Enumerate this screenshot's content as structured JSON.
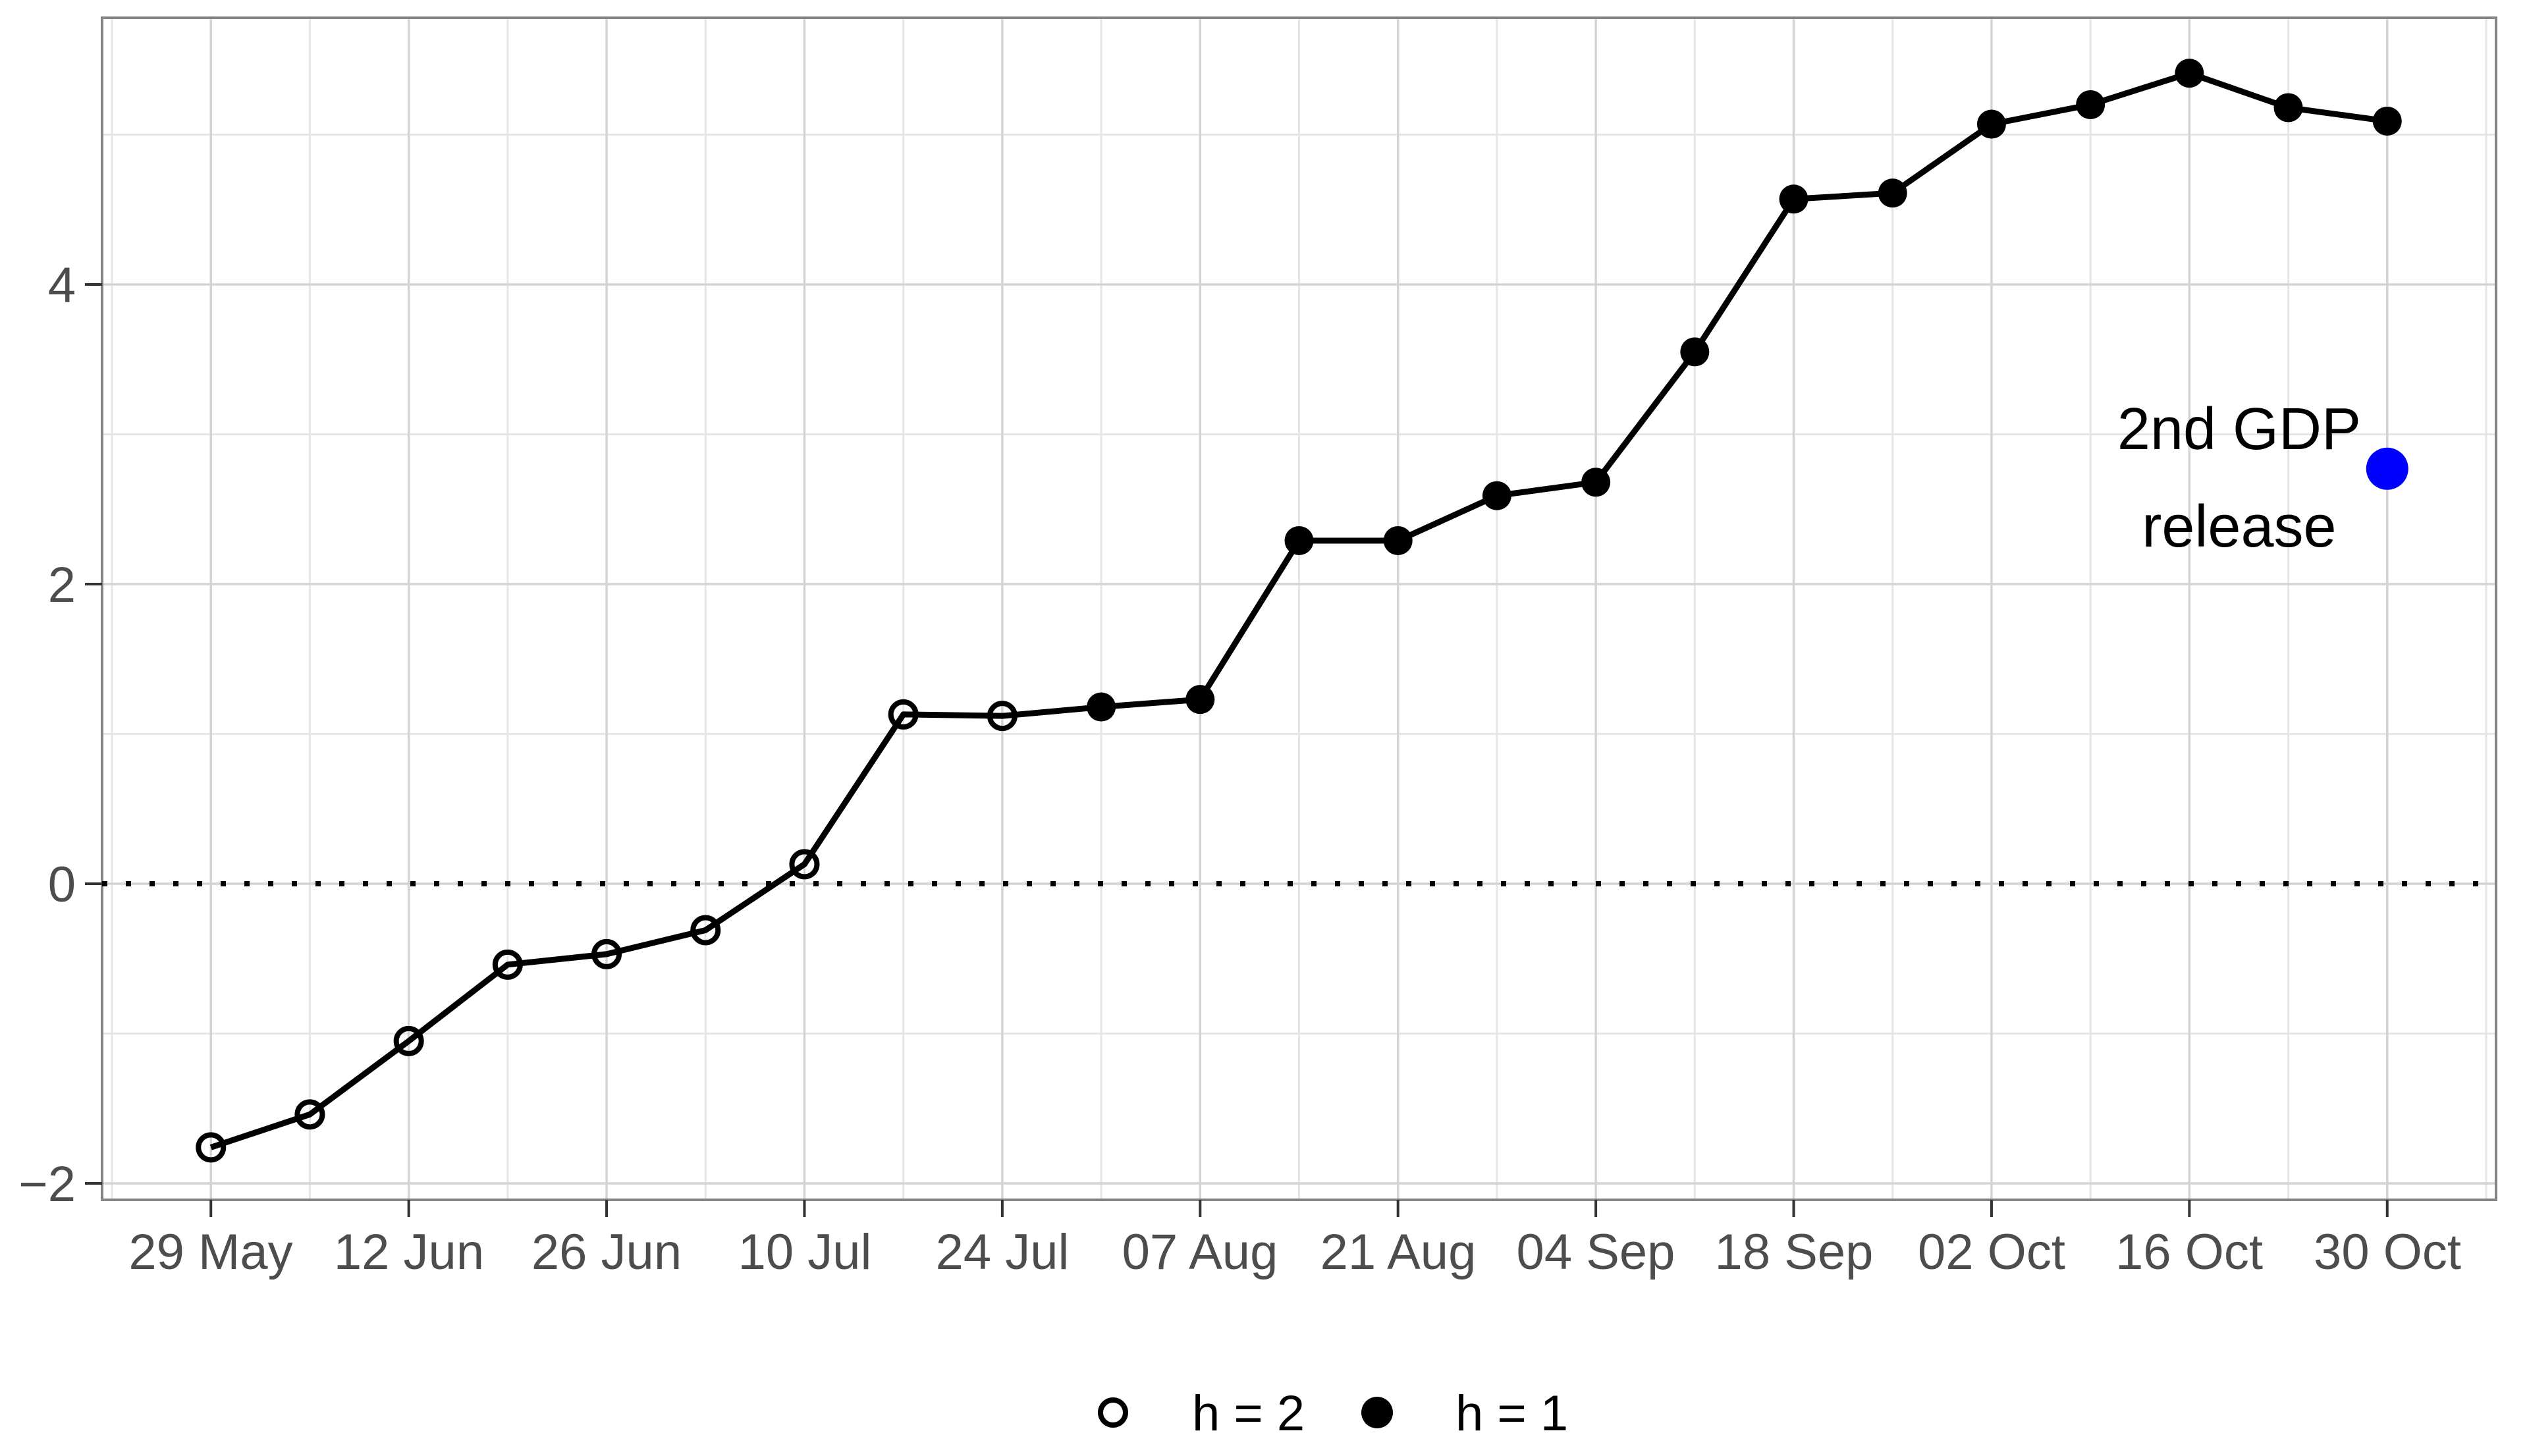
{
  "figure": {
    "background": "#ffffff",
    "panel_border_color": "#858585",
    "grid_major_color": "#d4d4d4",
    "grid_minor_color": "#e6e6e6",
    "axis_text_color": "#4d4d4d"
  },
  "chart_data": {
    "type": "line",
    "title": "",
    "xlabel": "",
    "ylabel": "",
    "grid": true,
    "legend_position": "bottom",
    "ylim": [
      -2.11,
      5.78
    ],
    "yticks": [
      -2,
      0,
      2,
      4
    ],
    "y_minor": [
      -1,
      1,
      3,
      5
    ],
    "y_tick_labels": [
      "−2",
      "0",
      "2",
      "4"
    ],
    "x_tick_labels": [
      "29 May",
      "12 Jun",
      "26 Jun",
      "10 Jul",
      "24 Jul",
      "07 Aug",
      "21 Aug",
      "04 Sep",
      "18 Sep",
      "02 Oct",
      "16 Oct",
      "30 Oct"
    ],
    "categories": [
      "29 May",
      "05 Jun",
      "12 Jun",
      "19 Jun",
      "26 Jun",
      "03 Jul",
      "10 Jul",
      "17 Jul",
      "24 Jul",
      "31 Jul",
      "07 Aug",
      "14 Aug",
      "21 Aug",
      "28 Aug",
      "04 Sep",
      "11 Sep",
      "18 Sep",
      "25 Sep",
      "02 Oct",
      "09 Oct",
      "16 Oct",
      "23 Oct",
      "30 Oct"
    ],
    "points": [
      {
        "date": "29 May",
        "value": -1.76,
        "h": 2
      },
      {
        "date": "05 Jun",
        "value": -1.54,
        "h": 2
      },
      {
        "date": "12 Jun",
        "value": -1.05,
        "h": 2
      },
      {
        "date": "19 Jun",
        "value": -0.54,
        "h": 2
      },
      {
        "date": "26 Jun",
        "value": -0.47,
        "h": 2
      },
      {
        "date": "03 Jul",
        "value": -0.31,
        "h": 2
      },
      {
        "date": "10 Jul",
        "value": 0.13,
        "h": 2
      },
      {
        "date": "17 Jul",
        "value": 1.13,
        "h": 2
      },
      {
        "date": "24 Jul",
        "value": 1.12,
        "h": 2
      },
      {
        "date": "31 Jul",
        "value": 1.18,
        "h": 1
      },
      {
        "date": "07 Aug",
        "value": 1.23,
        "h": 1
      },
      {
        "date": "14 Aug",
        "value": 2.29,
        "h": 1
      },
      {
        "date": "21 Aug",
        "value": 2.29,
        "h": 1
      },
      {
        "date": "28 Aug",
        "value": 2.59,
        "h": 1
      },
      {
        "date": "04 Sep",
        "value": 2.68,
        "h": 1
      },
      {
        "date": "11 Sep",
        "value": 3.55,
        "h": 1
      },
      {
        "date": "18 Sep",
        "value": 4.57,
        "h": 1
      },
      {
        "date": "25 Sep",
        "value": 4.61,
        "h": 1
      },
      {
        "date": "02 Oct",
        "value": 5.07,
        "h": 1
      },
      {
        "date": "09 Oct",
        "value": 5.2,
        "h": 1
      },
      {
        "date": "16 Oct",
        "value": 5.41,
        "h": 1
      },
      {
        "date": "23 Oct",
        "value": 5.18,
        "h": 1
      },
      {
        "date": "30 Oct",
        "value": 5.09,
        "h": 1
      }
    ],
    "line_color": "#000000",
    "zero_line": {
      "value": 0,
      "style": "dotted",
      "color": "#000000"
    },
    "annotation": {
      "text_lines": [
        "2nd GDP",
        "release"
      ],
      "date": "30 Oct",
      "value": 2.77,
      "point_color": "#0000ff"
    },
    "legend": [
      {
        "marker": "open",
        "label": "h = 2"
      },
      {
        "marker": "filled",
        "label": "h = 1"
      }
    ]
  }
}
